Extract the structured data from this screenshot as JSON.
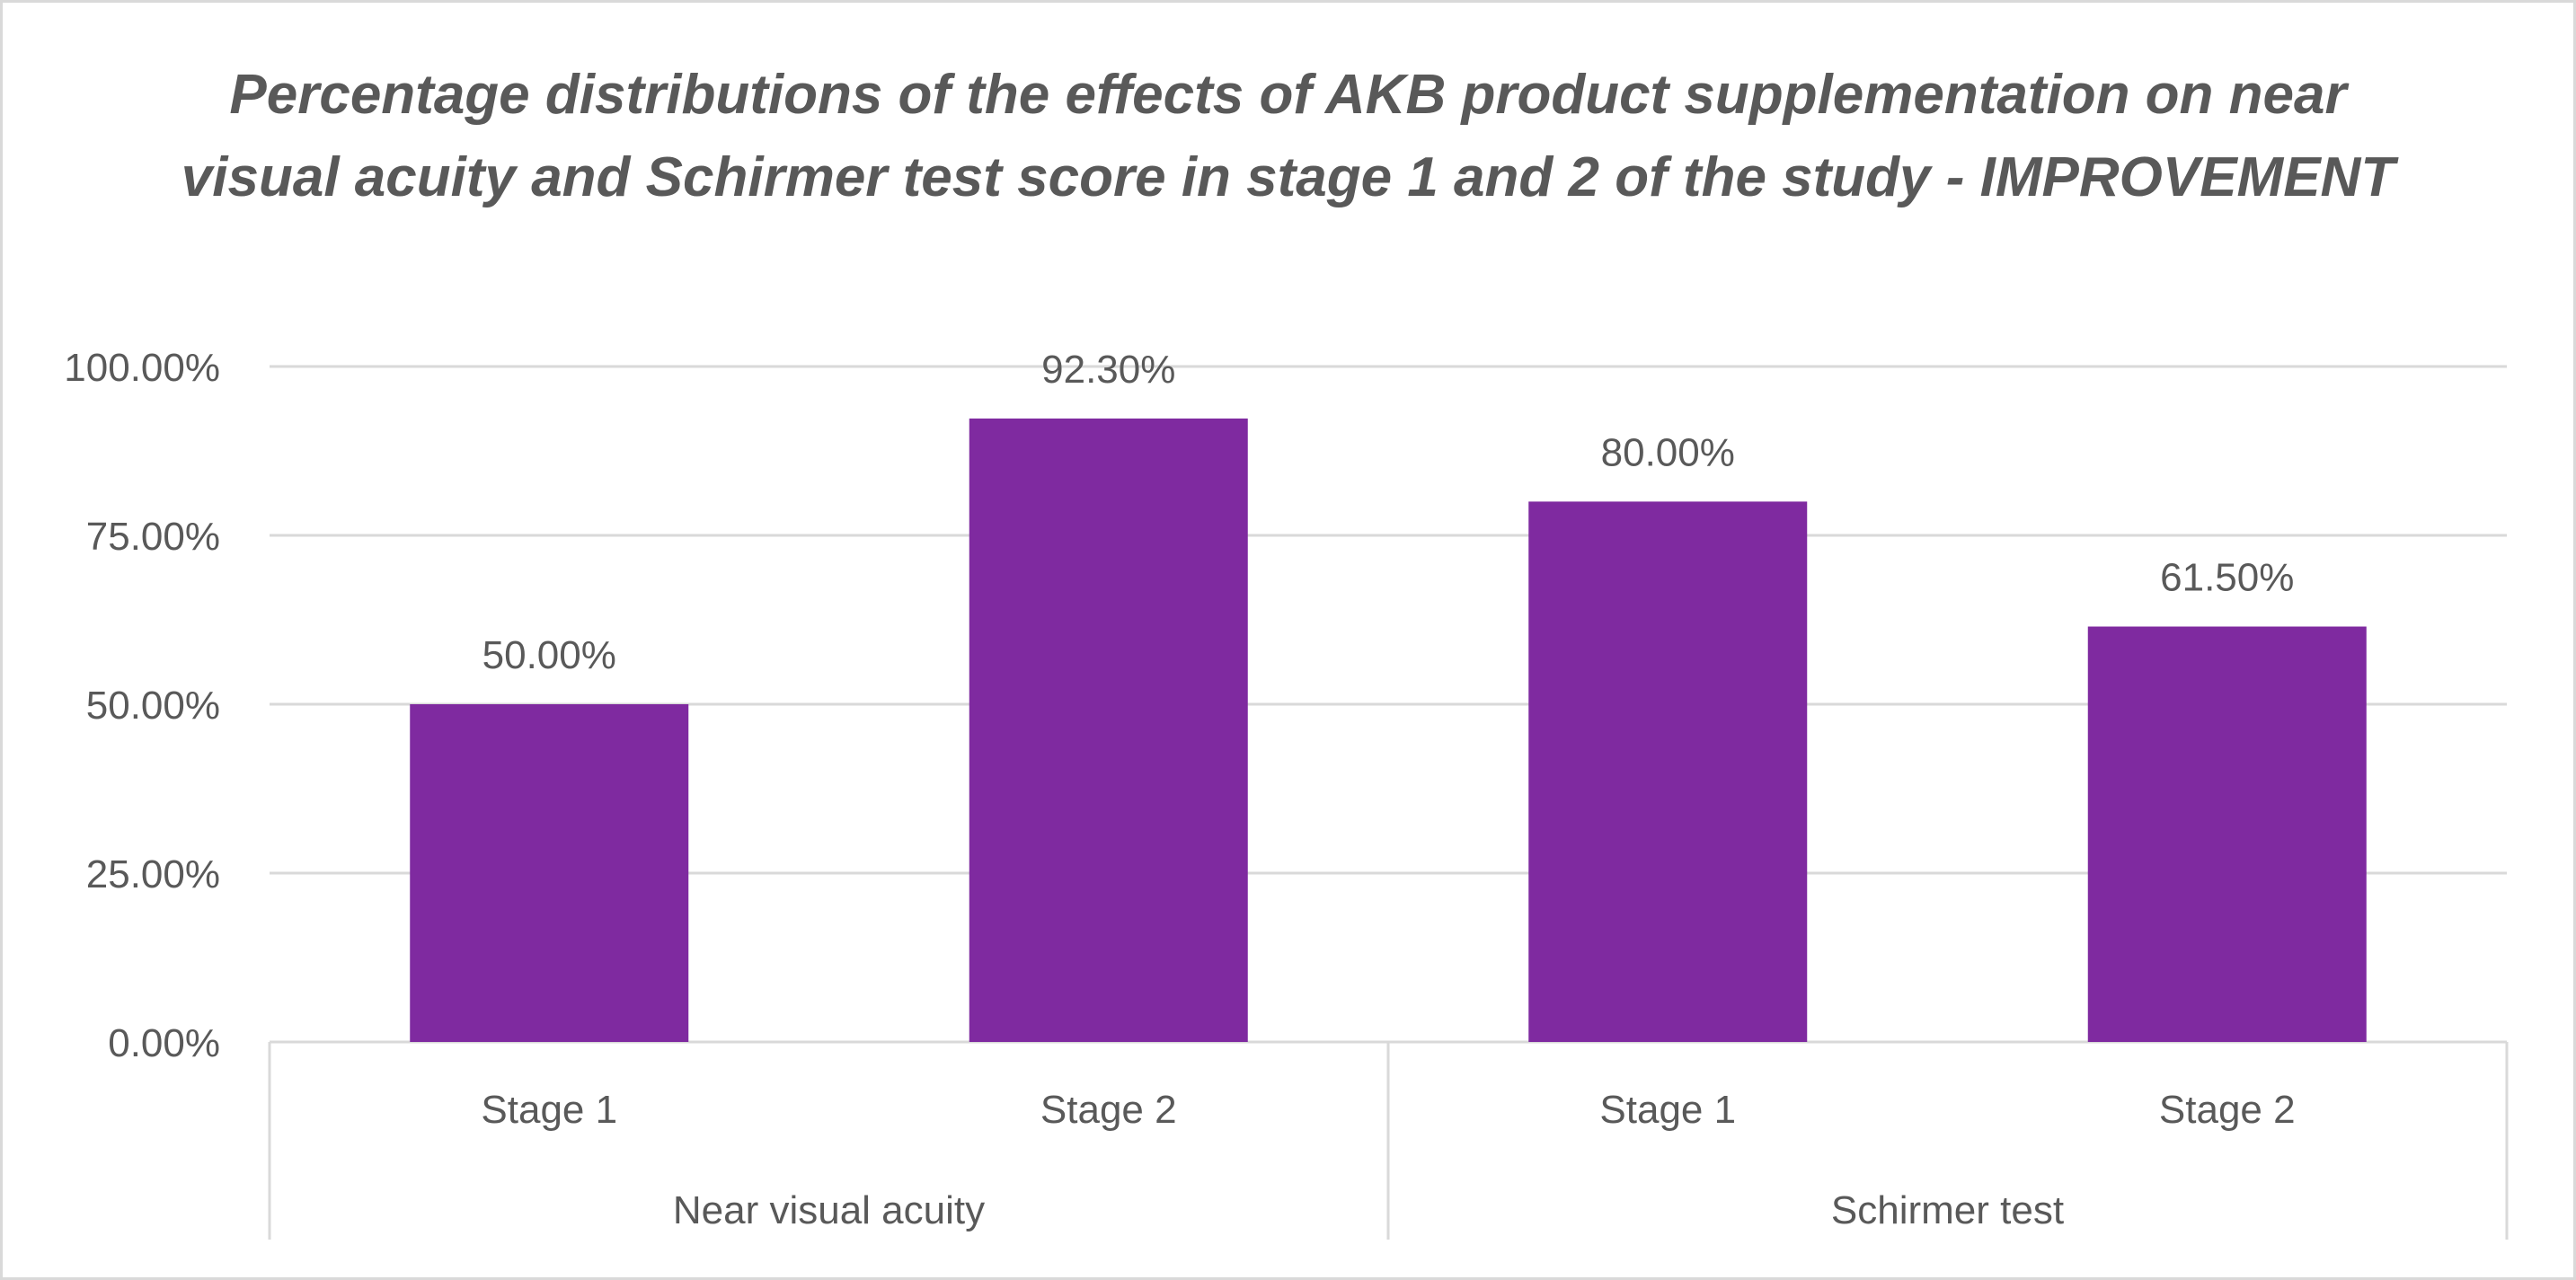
{
  "chart_data": {
    "type": "bar",
    "title": "Percentage distributions of the effects of AKB product supplementation on near visual acuity and Schirmer test score in stage 1 and 2 of the study - IMPROVEMENT",
    "xlabel": "",
    "ylabel": "",
    "ylim": [
      0,
      100
    ],
    "yticks": [
      "0.00%",
      "25.00%",
      "50.00%",
      "75.00%",
      "100.00%"
    ],
    "ytick_values": [
      0,
      25,
      50,
      75,
      100
    ],
    "grid": true,
    "groups": [
      "Near visual acuity",
      "Schirmer test"
    ],
    "categories": [
      "Stage 1",
      "Stage 2",
      "Stage 1",
      "Stage 2"
    ],
    "values": [
      50.0,
      92.3,
      80.0,
      61.5
    ],
    "data_labels": [
      "50.00%",
      "92.30%",
      "80.00%",
      "61.50%"
    ],
    "bar_color": "#7F2AA0",
    "grid_color": "#d9d9d9",
    "text_color": "#595959"
  }
}
